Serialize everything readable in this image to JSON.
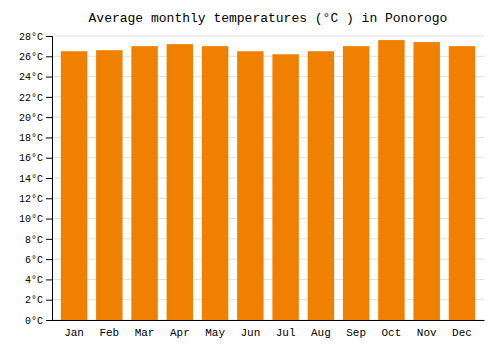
{
  "chart_data": {
    "type": "bar",
    "title": "Average monthly temperatures (°C ) in Ponorogo",
    "categories": [
      "Jan",
      "Feb",
      "Mar",
      "Apr",
      "May",
      "Jun",
      "Jul",
      "Aug",
      "Sep",
      "Oct",
      "Nov",
      "Dec"
    ],
    "values": [
      26.5,
      26.6,
      27.0,
      27.2,
      27.0,
      26.5,
      26.2,
      26.5,
      27.0,
      27.6,
      27.4,
      27.0
    ],
    "color": "#F08000",
    "ylim": [
      0,
      28
    ],
    "yticks": [
      {
        "value": 0,
        "label": "0°C"
      },
      {
        "value": 2,
        "label": "2°C"
      },
      {
        "value": 4,
        "label": "4°C"
      },
      {
        "value": 6,
        "label": "6°C"
      },
      {
        "value": 8,
        "label": "8°C"
      },
      {
        "value": 10,
        "label": "10°C"
      },
      {
        "value": 12,
        "label": "12°C"
      },
      {
        "value": 14,
        "label": "14°C"
      },
      {
        "value": 16,
        "label": "16°C"
      },
      {
        "value": 18,
        "label": "18°C"
      },
      {
        "value": 20,
        "label": "20°C"
      },
      {
        "value": 22,
        "label": "22°C"
      },
      {
        "value": 24,
        "label": "24°C"
      },
      {
        "value": 26,
        "label": "26°C"
      },
      {
        "value": 28,
        "label": "28°C"
      }
    ],
    "grid": true
  }
}
